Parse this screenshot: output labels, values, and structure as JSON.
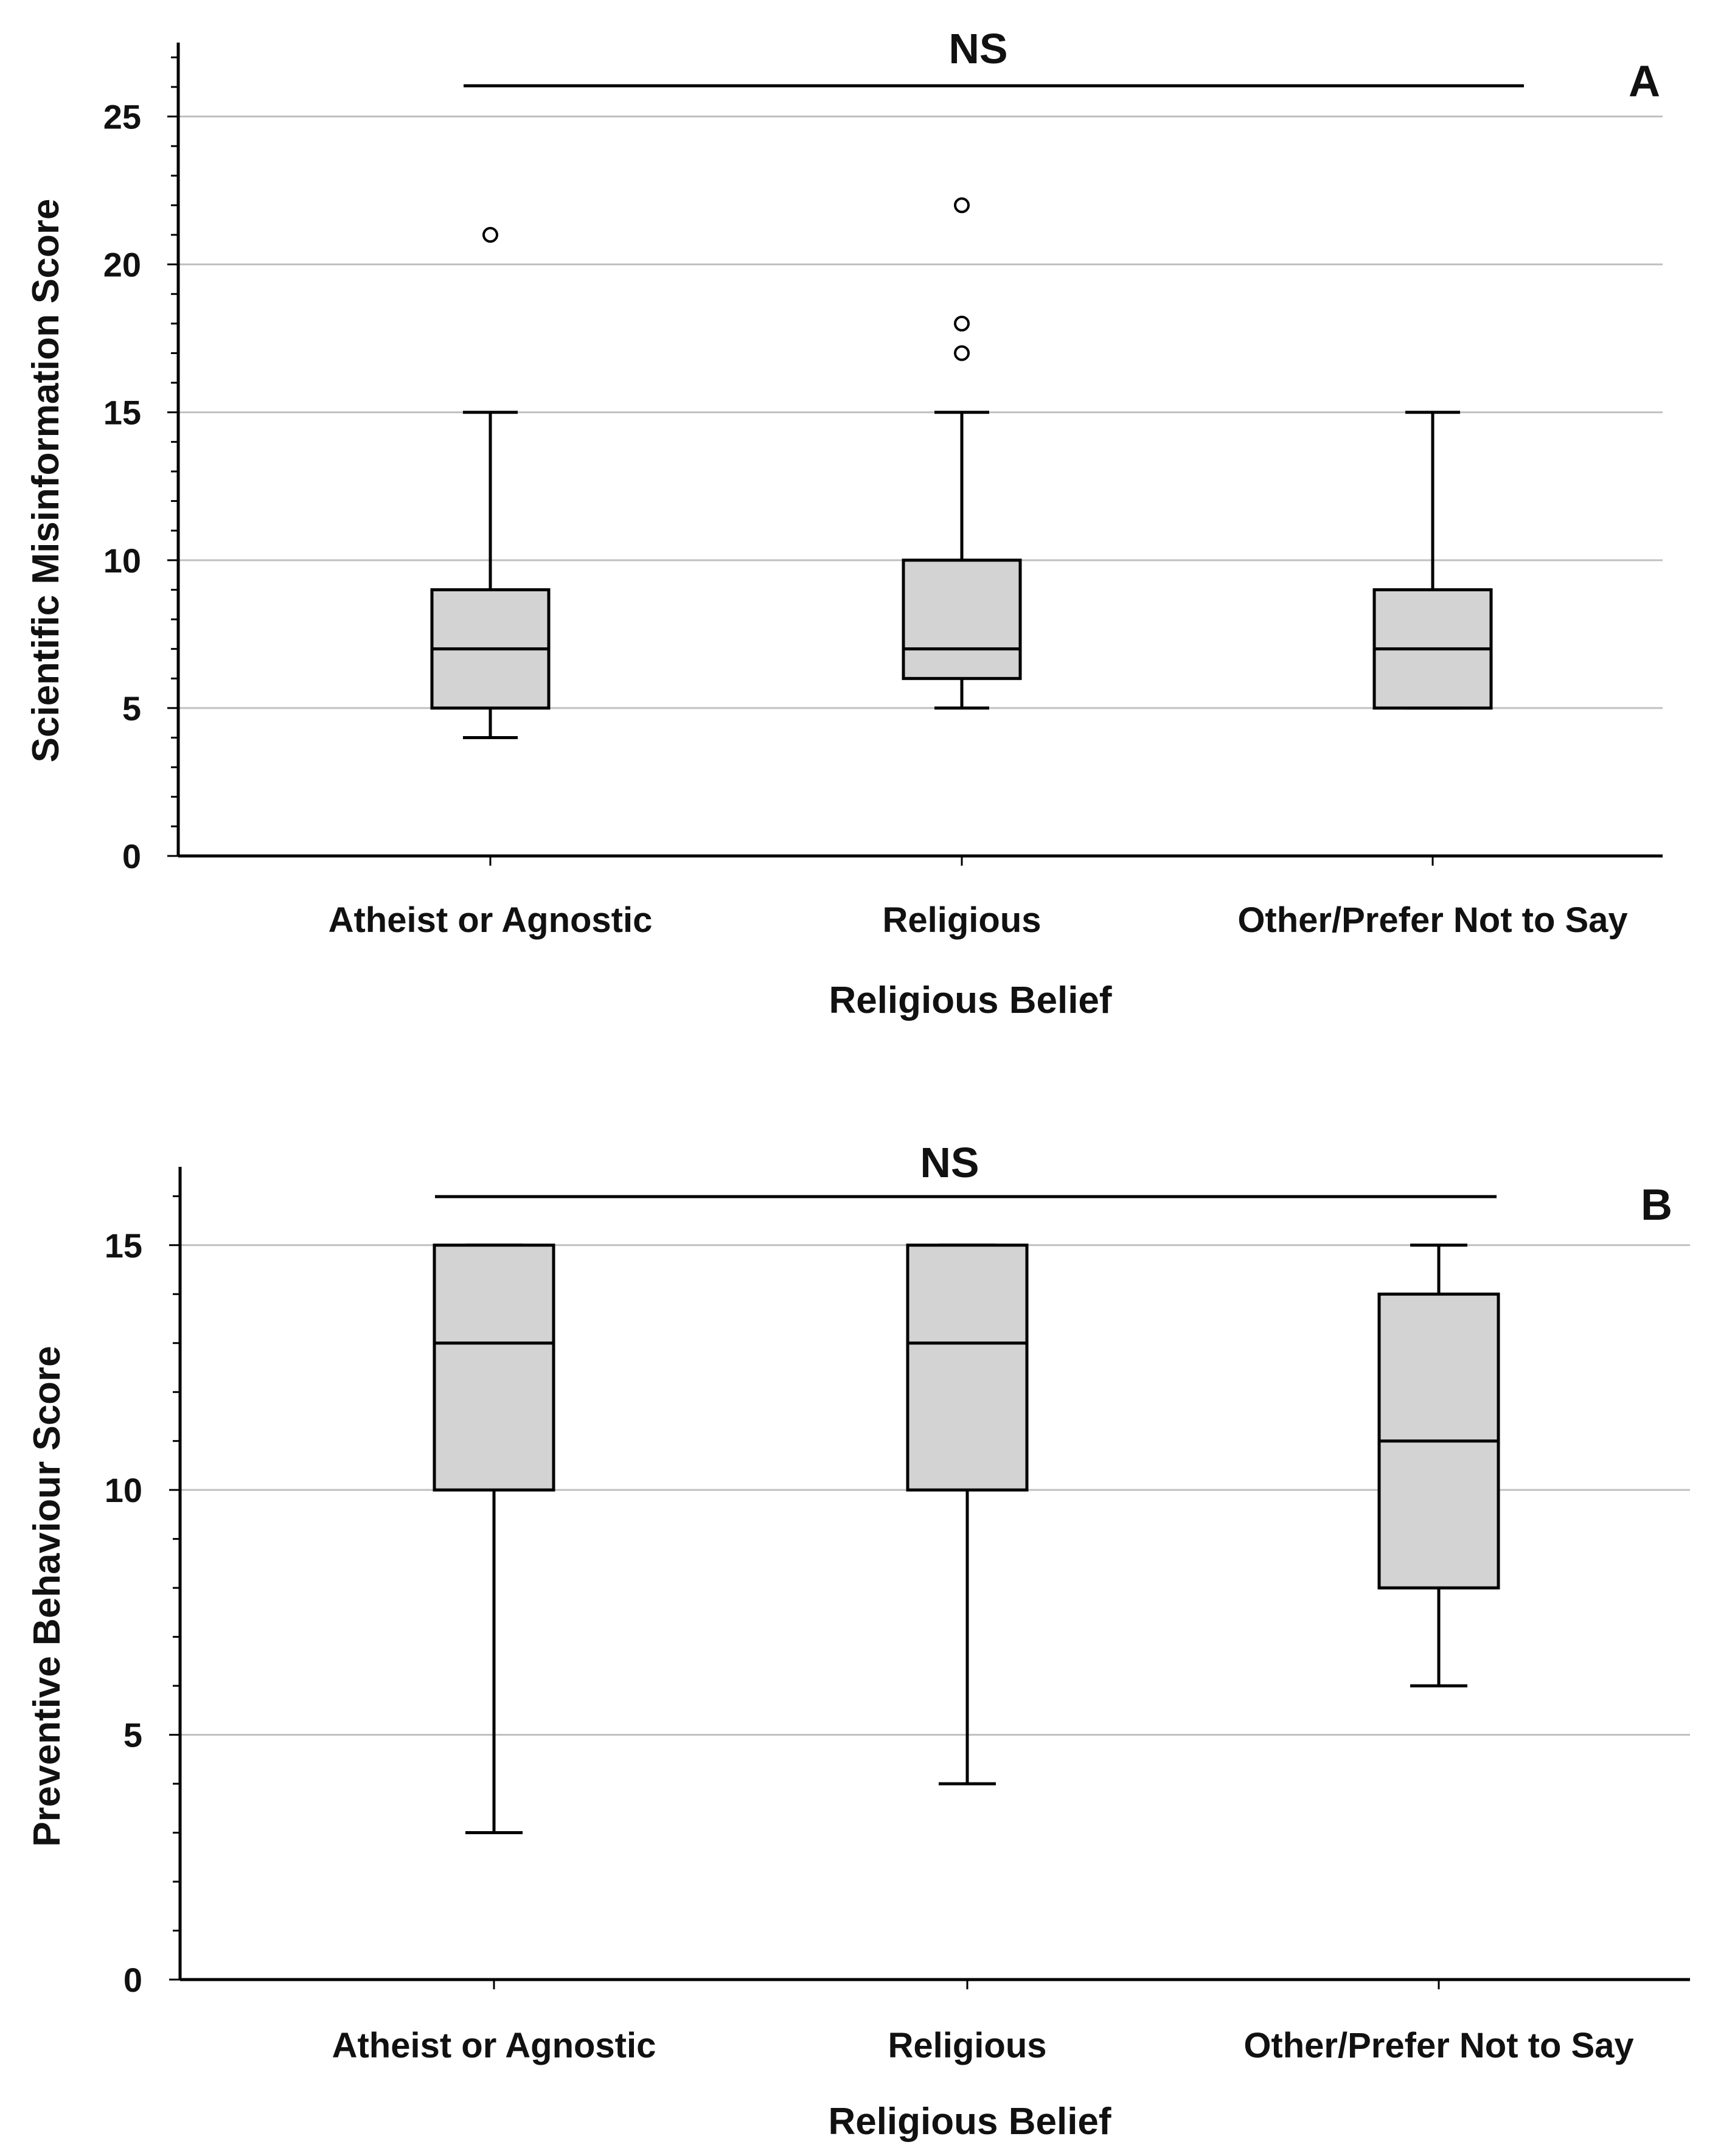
{
  "chart_data": [
    {
      "type": "boxplot",
      "panel": "A",
      "significance": "NS",
      "xlabel": "Religious Belief",
      "ylabel": "Scientific Misinformation Score",
      "ylim": [
        0,
        27.5
      ],
      "yticks": [
        0,
        5,
        10,
        15,
        20,
        25
      ],
      "minor_step": 1,
      "grid": true,
      "categories": [
        "Atheist or Agnostic",
        "Religious",
        "Other/Prefer Not to Say"
      ],
      "boxes": [
        {
          "category": "Atheist or Agnostic",
          "whisker_low": 4,
          "q1": 5,
          "median": 7,
          "q3": 9,
          "whisker_high": 15,
          "outliers": [
            21
          ]
        },
        {
          "category": "Religious",
          "whisker_low": 5,
          "q1": 6,
          "median": 7,
          "q3": 10,
          "whisker_high": 15,
          "outliers": [
            22,
            18,
            17
          ]
        },
        {
          "category": "Other/Prefer Not to Say",
          "whisker_low": 5,
          "q1": 5,
          "median": 7,
          "q3": 9,
          "whisker_high": 15,
          "outliers": []
        }
      ],
      "colors": {
        "box_fill": "#d3d3d3",
        "line": "#000000",
        "grid": "#c0c0c0"
      }
    },
    {
      "type": "boxplot",
      "panel": "B",
      "significance": "NS",
      "xlabel": "Religious Belief",
      "ylabel": "Preventive Behaviour Score",
      "ylim": [
        0,
        16.6
      ],
      "yticks": [
        0,
        5,
        10,
        15
      ],
      "minor_step": 1,
      "grid": true,
      "categories": [
        "Atheist or Agnostic",
        "Religious",
        "Other/Prefer Not to Say"
      ],
      "boxes": [
        {
          "category": "Atheist or Agnostic",
          "whisker_low": 3,
          "q1": 10,
          "median": 13,
          "q3": 15,
          "whisker_high": 15,
          "outliers": []
        },
        {
          "category": "Religious",
          "whisker_low": 4,
          "q1": 10,
          "median": 13,
          "q3": 15,
          "whisker_high": 15,
          "outliers": []
        },
        {
          "category": "Other/Prefer Not to Say",
          "whisker_low": 6,
          "q1": 8,
          "median": 11,
          "q3": 14,
          "whisker_high": 15,
          "outliers": []
        }
      ],
      "colors": {
        "box_fill": "#d3d3d3",
        "line": "#000000",
        "grid": "#c0c0c0"
      }
    }
  ]
}
